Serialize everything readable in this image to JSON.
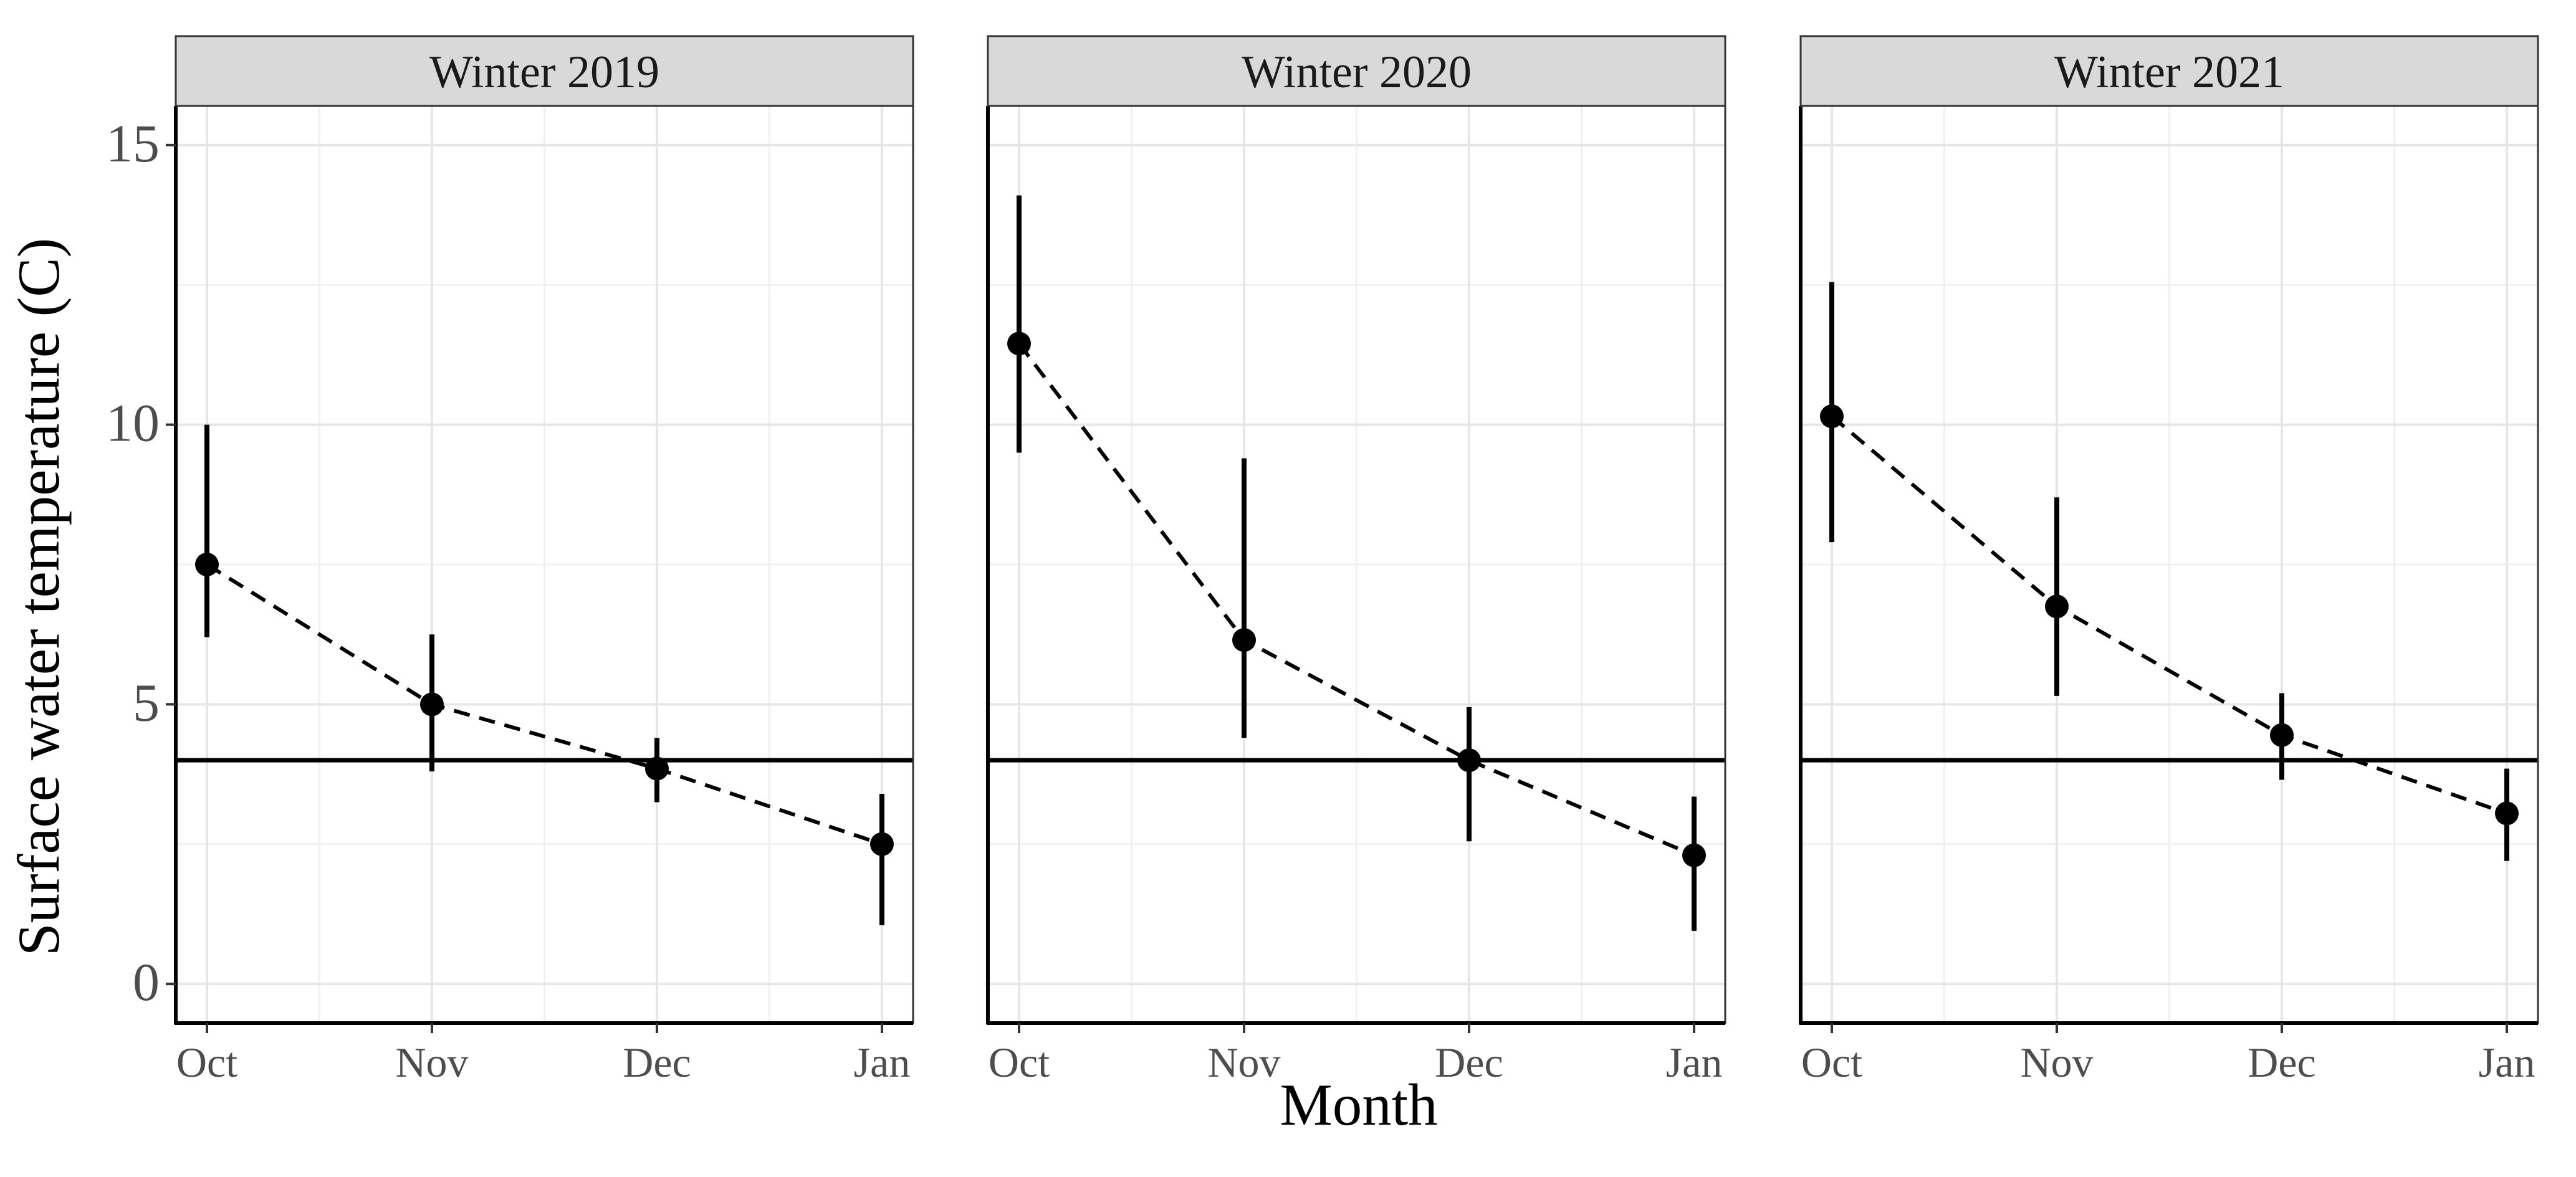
{
  "chart_data": {
    "type": "scatter",
    "xlabel": "Month",
    "ylabel": "Surface water temperature (C)",
    "categories": [
      "Oct",
      "Nov",
      "Dec",
      "Jan"
    ],
    "ylim": [
      -0.7,
      15.7
    ],
    "yticks": [
      0,
      5,
      10,
      15
    ],
    "grid": true,
    "reference_line": 4,
    "panels": [
      {
        "title": "Winter 2019",
        "mean": [
          7.5,
          5.0,
          3.85,
          2.5
        ],
        "lower": [
          6.2,
          3.8,
          3.25,
          1.05
        ],
        "upper": [
          10.0,
          6.25,
          4.4,
          3.4
        ]
      },
      {
        "title": "Winter 2020",
        "mean": [
          11.45,
          6.15,
          4.0,
          2.3
        ],
        "lower": [
          9.5,
          4.4,
          2.55,
          0.95
        ],
        "upper": [
          14.1,
          9.4,
          4.95,
          3.35
        ]
      },
      {
        "title": "Winter 2021",
        "mean": [
          10.15,
          6.75,
          4.45,
          3.05
        ],
        "lower": [
          7.9,
          5.15,
          3.65,
          2.2
        ],
        "upper": [
          12.55,
          8.7,
          5.2,
          3.85
        ]
      }
    ]
  }
}
